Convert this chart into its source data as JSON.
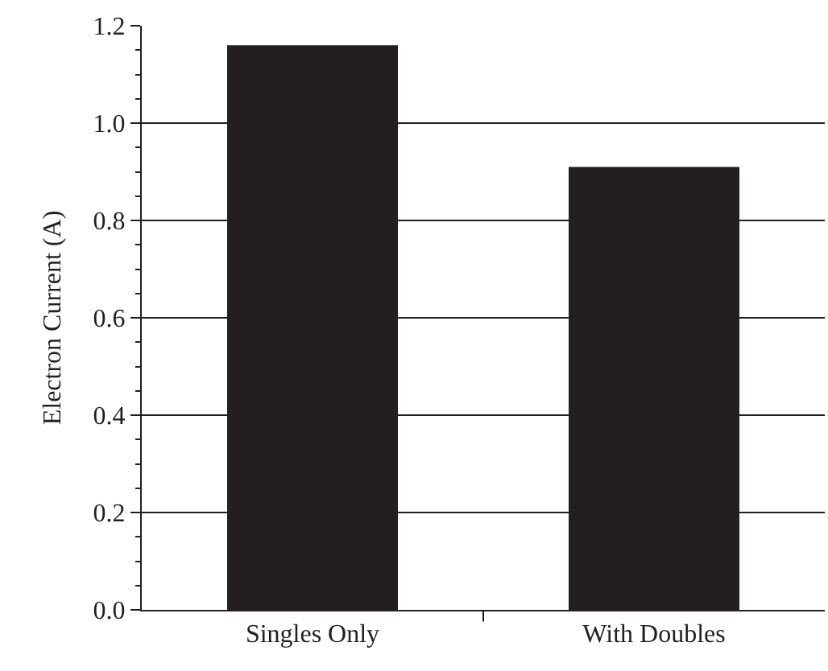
{
  "chart_data": {
    "type": "bar",
    "ylabel": "Electron Current (A)",
    "categories": [
      "Singles Only",
      "With Doubles"
    ],
    "values": [
      1.16,
      0.91
    ],
    "color": "#231f20",
    "ylim": [
      0,
      1.2
    ],
    "yticks": [
      {
        "value": 0,
        "label": "0.0"
      },
      {
        "value": 0.2,
        "label": "0.2"
      },
      {
        "value": 0.4,
        "label": "0.4"
      },
      {
        "value": 0.6,
        "label": "0.6"
      },
      {
        "value": 0.8,
        "label": "0.8"
      },
      {
        "value": 1.0,
        "label": "1.0"
      },
      {
        "value": 1.2,
        "label": "1.2"
      }
    ],
    "grid": "y",
    "legend": false
  }
}
